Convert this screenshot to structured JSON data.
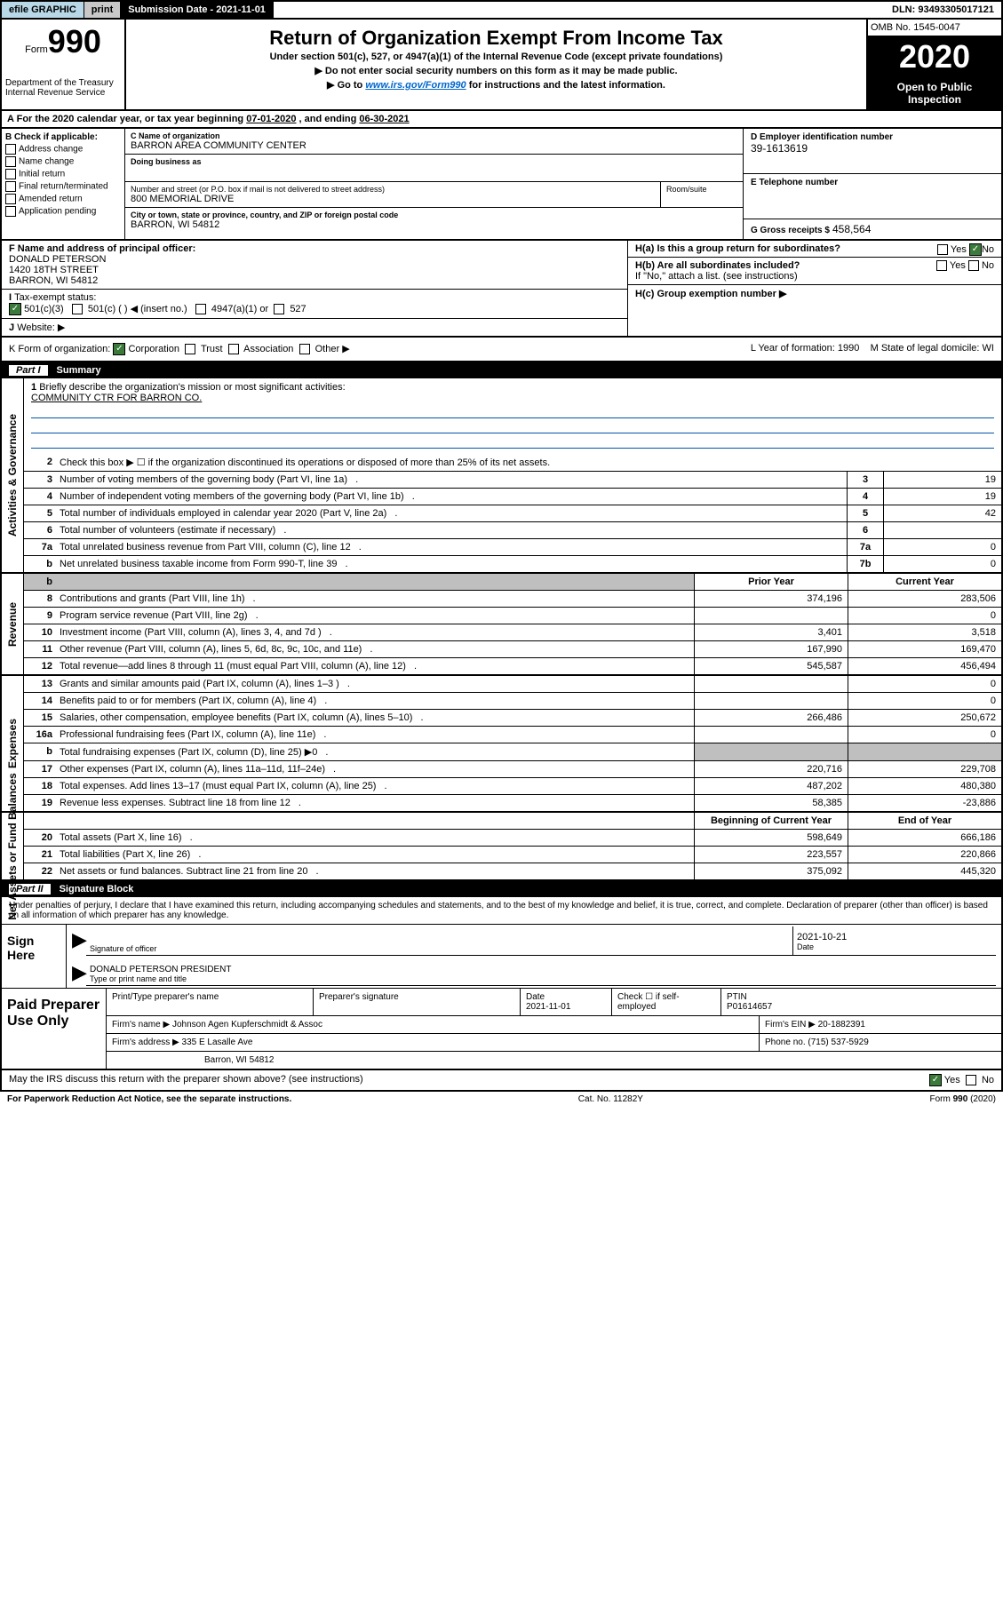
{
  "colors": {
    "header_blue": "#b8d8e8",
    "black": "#000000",
    "gray": "#c8c8c8",
    "cell_gray": "#bfbfbf",
    "check_green": "#3a7a3a",
    "link": "#0066cc",
    "line_blue": "#0055aa"
  },
  "top": {
    "efile": "efile GRAPHIC",
    "print": "print",
    "sub_date_label": "Submission Date - 2021-11-01",
    "dln": "DLN: 93493305017121"
  },
  "header": {
    "form_label": "Form",
    "form_num": "990",
    "title": "Return of Organization Exempt From Income Tax",
    "subtitle": "Under section 501(c), 527, or 4947(a)(1) of the Internal Revenue Code (except private foundations)",
    "instr1": "Do not enter social security numbers on this form as it may be made public.",
    "instr2_pre": "Go to ",
    "instr2_link": "www.irs.gov/Form990",
    "instr2_post": " for instructions and the latest information.",
    "dept": "Department of the Treasury\nInternal Revenue Service",
    "omb": "OMB No. 1545-0047",
    "year": "2020",
    "open_public": "Open to Public Inspection"
  },
  "period": {
    "text_pre": "For the 2020 calendar year, or tax year beginning ",
    "begin": "07-01-2020",
    "text_mid": " , and ending ",
    "end": "06-30-2021"
  },
  "section_b": {
    "heading": "B Check if applicable:",
    "items": [
      "Address change",
      "Name change",
      "Initial return",
      "Final return/terminated",
      "Amended return",
      "Application pending"
    ],
    "c_label": "C Name of organization",
    "c_name": "BARRON AREA COMMUNITY CENTER",
    "dba_label": "Doing business as",
    "dba": "",
    "addr_label": "Number and street (or P.O. box if mail is not delivered to street address)",
    "addr": "800 MEMORIAL DRIVE",
    "room_label": "Room/suite",
    "city_label": "City or town, state or province, country, and ZIP or foreign postal code",
    "city": "BARRON, WI  54812",
    "d_label": "D Employer identification number",
    "d_val": "39-1613619",
    "e_label": "E Telephone number",
    "e_val": "",
    "g_label": "G Gross receipts $",
    "g_val": "458,564"
  },
  "fgh": {
    "f_label": "F  Name and address of principal officer:",
    "f_name": "DONALD PETERSON",
    "f_addr1": "1420 18TH STREET",
    "f_addr2": "BARRON, WI  54812",
    "ha_label": "H(a)  Is this a group return for subordinates?",
    "ha_yes": "Yes",
    "ha_no": "No",
    "hb_label": "H(b)  Are all subordinates included?",
    "hb_yes": "Yes",
    "hb_no": "No",
    "hb_note": "If \"No,\" attach a list. (see instructions)",
    "hc_label": "H(c)  Group exemption number ▶",
    "i_label": "Tax-exempt status:",
    "i_501c3": "501(c)(3)",
    "i_501c": "501(c) (   ) ◀ (insert no.)",
    "i_4947": "4947(a)(1) or",
    "i_527": "527",
    "j_label": "Website: ▶"
  },
  "row_k": {
    "k_label": "K Form of organization:",
    "k_corp": "Corporation",
    "k_trust": "Trust",
    "k_assoc": "Association",
    "k_other": "Other ▶",
    "l_label": "L Year of formation:",
    "l_val": "1990",
    "m_label": "M State of legal domicile:",
    "m_val": "WI"
  },
  "part1": {
    "label": "Part I",
    "title": "Summary"
  },
  "summary": {
    "line1_label": "Briefly describe the organization's mission or most significant activities:",
    "line1_val": "COMMUNITY CTR FOR BARRON CO.",
    "line2": "Check this box ▶ ☐  if the organization discontinued its operations or disposed of more than 25% of its net assets.",
    "rows_ag": [
      {
        "n": "3",
        "d": "Number of voting members of the governing body (Part VI, line 1a)",
        "bn": "3",
        "v": "19"
      },
      {
        "n": "4",
        "d": "Number of independent voting members of the governing body (Part VI, line 1b)",
        "bn": "4",
        "v": "19"
      },
      {
        "n": "5",
        "d": "Total number of individuals employed in calendar year 2020 (Part V, line 2a)",
        "bn": "5",
        "v": "42"
      },
      {
        "n": "6",
        "d": "Total number of volunteers (estimate if necessary)",
        "bn": "6",
        "v": ""
      },
      {
        "n": "7a",
        "d": "Total unrelated business revenue from Part VIII, column (C), line 12",
        "bn": "7a",
        "v": "0"
      },
      {
        "n": "b",
        "d": "Net unrelated business taxable income from Form 990-T, line 39",
        "bn": "7b",
        "v": "0"
      }
    ],
    "hdr_prior": "Prior Year",
    "hdr_curr": "Current Year",
    "rows_rev": [
      {
        "n": "8",
        "d": "Contributions and grants (Part VIII, line 1h)",
        "p": "374,196",
        "c": "283,506"
      },
      {
        "n": "9",
        "d": "Program service revenue (Part VIII, line 2g)",
        "p": "",
        "c": "0"
      },
      {
        "n": "10",
        "d": "Investment income (Part VIII, column (A), lines 3, 4, and 7d )",
        "p": "3,401",
        "c": "3,518"
      },
      {
        "n": "11",
        "d": "Other revenue (Part VIII, column (A), lines 5, 6d, 8c, 9c, 10c, and 11e)",
        "p": "167,990",
        "c": "169,470"
      },
      {
        "n": "12",
        "d": "Total revenue—add lines 8 through 11 (must equal Part VIII, column (A), line 12)",
        "p": "545,587",
        "c": "456,494"
      }
    ],
    "rows_exp": [
      {
        "n": "13",
        "d": "Grants and similar amounts paid (Part IX, column (A), lines 1–3 )",
        "p": "",
        "c": "0"
      },
      {
        "n": "14",
        "d": "Benefits paid to or for members (Part IX, column (A), line 4)",
        "p": "",
        "c": "0"
      },
      {
        "n": "15",
        "d": "Salaries, other compensation, employee benefits (Part IX, column (A), lines 5–10)",
        "p": "266,486",
        "c": "250,672"
      },
      {
        "n": "16a",
        "d": "Professional fundraising fees (Part IX, column (A), line 11e)",
        "p": "",
        "c": "0"
      },
      {
        "n": "b",
        "d": "Total fundraising expenses (Part IX, column (D), line 25) ▶0",
        "p": "GRAY",
        "c": "GRAY"
      },
      {
        "n": "17",
        "d": "Other expenses (Part IX, column (A), lines 11a–11d, 11f–24e)",
        "p": "220,716",
        "c": "229,708"
      },
      {
        "n": "18",
        "d": "Total expenses. Add lines 13–17 (must equal Part IX, column (A), line 25)",
        "p": "487,202",
        "c": "480,380"
      },
      {
        "n": "19",
        "d": "Revenue less expenses. Subtract line 18 from line 12",
        "p": "58,385",
        "c": "-23,886"
      }
    ],
    "hdr_bcy": "Beginning of Current Year",
    "hdr_eoy": "End of Year",
    "rows_na": [
      {
        "n": "20",
        "d": "Total assets (Part X, line 16)",
        "p": "598,649",
        "c": "666,186"
      },
      {
        "n": "21",
        "d": "Total liabilities (Part X, line 26)",
        "p": "223,557",
        "c": "220,866"
      },
      {
        "n": "22",
        "d": "Net assets or fund balances. Subtract line 21 from line 20",
        "p": "375,092",
        "c": "445,320"
      }
    ],
    "side_ag": "Activities & Governance",
    "side_rev": "Revenue",
    "side_exp": "Expenses",
    "side_na": "Net Assets or Fund Balances"
  },
  "part2": {
    "label": "Part II",
    "title": "Signature Block",
    "penalties": "Under penalties of perjury, I declare that I have examined this return, including accompanying schedules and statements, and to the best of my knowledge and belief, it is true, correct, and complete. Declaration of preparer (other than officer) is based on all information of which preparer has any knowledge.",
    "sign_here": "Sign Here",
    "sig_officer": "Signature of officer",
    "sig_date_label": "Date",
    "sig_date": "2021-10-21",
    "sig_name": "DONALD PETERSON  PRESIDENT",
    "sig_name_label": "Type or print name and title",
    "paid_label": "Paid Preparer Use Only",
    "prep_name_label": "Print/Type preparer's name",
    "prep_sig_label": "Preparer's signature",
    "prep_date_label": "Date",
    "prep_date": "2021-11-01",
    "prep_check_label": "Check ☐ if self-employed",
    "ptin_label": "PTIN",
    "ptin": "P01614657",
    "firm_name_label": "Firm's name    ▶",
    "firm_name": "Johnson Agen Kupferschmidt & Assoc",
    "firm_ein_label": "Firm's EIN ▶",
    "firm_ein": "20-1882391",
    "firm_addr_label": "Firm's address ▶",
    "firm_addr1": "335 E Lasalle Ave",
    "firm_addr2": "Barron, WI  54812",
    "phone_label": "Phone no.",
    "phone": "(715) 537-5929",
    "discuss": "May the IRS discuss this return with the preparer shown above? (see instructions)",
    "discuss_yes": "Yes",
    "discuss_no": "No"
  },
  "footer": {
    "paperwork": "For Paperwork Reduction Act Notice, see the separate instructions.",
    "cat": "Cat. No. 11282Y",
    "form": "Form 990 (2020)"
  }
}
